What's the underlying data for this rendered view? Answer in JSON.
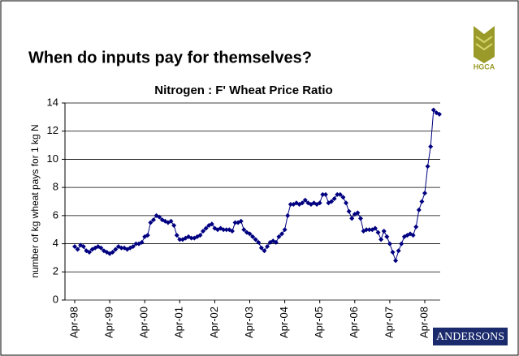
{
  "page_title": "When do inputs pay for themselves?",
  "logo_top": "HGCA",
  "logo_bottom": "ANDERSONS",
  "chart_data": {
    "type": "line",
    "title": "Nitrogen : F' Wheat Price Ratio",
    "y_label": "number of kg wheat pays for 1 kg N",
    "color": "#000080",
    "grid": true,
    "ylim": [
      0,
      14
    ],
    "yticks": [
      0,
      2,
      4,
      6,
      8,
      10,
      12,
      14
    ],
    "categories": [
      "Apr-98",
      null,
      null,
      null,
      null,
      null,
      null,
      null,
      null,
      null,
      null,
      null,
      "Apr-99",
      null,
      null,
      null,
      null,
      null,
      null,
      null,
      null,
      null,
      null,
      null,
      "Apr-00",
      null,
      null,
      null,
      null,
      null,
      null,
      null,
      null,
      null,
      null,
      null,
      "Apr-01",
      null,
      null,
      null,
      null,
      null,
      null,
      null,
      null,
      null,
      null,
      null,
      "Apr-02",
      null,
      null,
      null,
      null,
      null,
      null,
      null,
      null,
      null,
      null,
      null,
      "Apr-03",
      null,
      null,
      null,
      null,
      null,
      null,
      null,
      null,
      null,
      null,
      null,
      "Apr-04",
      null,
      null,
      null,
      null,
      null,
      null,
      null,
      null,
      null,
      null,
      null,
      "Apr-05",
      null,
      null,
      null,
      null,
      null,
      null,
      null,
      null,
      null,
      null,
      null,
      "Apr-06",
      null,
      null,
      null,
      null,
      null,
      null,
      null,
      null,
      null,
      null,
      null,
      "Apr-07",
      null,
      null,
      null,
      null,
      null,
      null,
      null,
      null,
      null,
      null,
      null,
      "Apr-08",
      null,
      null,
      null,
      null,
      null
    ],
    "values": [
      3.8,
      3.6,
      3.9,
      3.8,
      3.5,
      3.4,
      3.6,
      3.7,
      3.8,
      3.7,
      3.5,
      3.4,
      3.3,
      3.4,
      3.6,
      3.8,
      3.7,
      3.7,
      3.6,
      3.7,
      3.8,
      4.0,
      4.0,
      4.1,
      4.5,
      4.6,
      5.5,
      5.7,
      6.0,
      5.9,
      5.7,
      5.6,
      5.5,
      5.6,
      5.3,
      4.6,
      4.3,
      4.3,
      4.4,
      4.5,
      4.4,
      4.4,
      4.5,
      4.6,
      4.9,
      5.1,
      5.3,
      5.4,
      5.1,
      5.0,
      5.1,
      5.0,
      5.0,
      5.0,
      4.9,
      5.5,
      5.5,
      5.6,
      5.0,
      4.8,
      4.7,
      4.5,
      4.3,
      4.1,
      3.7,
      3.5,
      3.8,
      4.1,
      4.2,
      4.1,
      4.5,
      4.7,
      5.0,
      6.0,
      6.8,
      6.8,
      6.9,
      6.8,
      6.9,
      7.1,
      6.9,
      6.8,
      6.9,
      6.8,
      6.9,
      7.5,
      7.5,
      6.9,
      7.0,
      7.2,
      7.5,
      7.5,
      7.3,
      6.9,
      6.3,
      5.8,
      6.1,
      6.2,
      5.8,
      4.9,
      5.0,
      5.0,
      5.0,
      5.1,
      4.8,
      4.3,
      4.9,
      4.5,
      4.0,
      3.4,
      2.8,
      3.5,
      4.0,
      4.5,
      4.6,
      4.7,
      4.6,
      5.2,
      6.4,
      7.0,
      7.6,
      9.5,
      10.9,
      13.5,
      13.3,
      13.2
    ]
  }
}
